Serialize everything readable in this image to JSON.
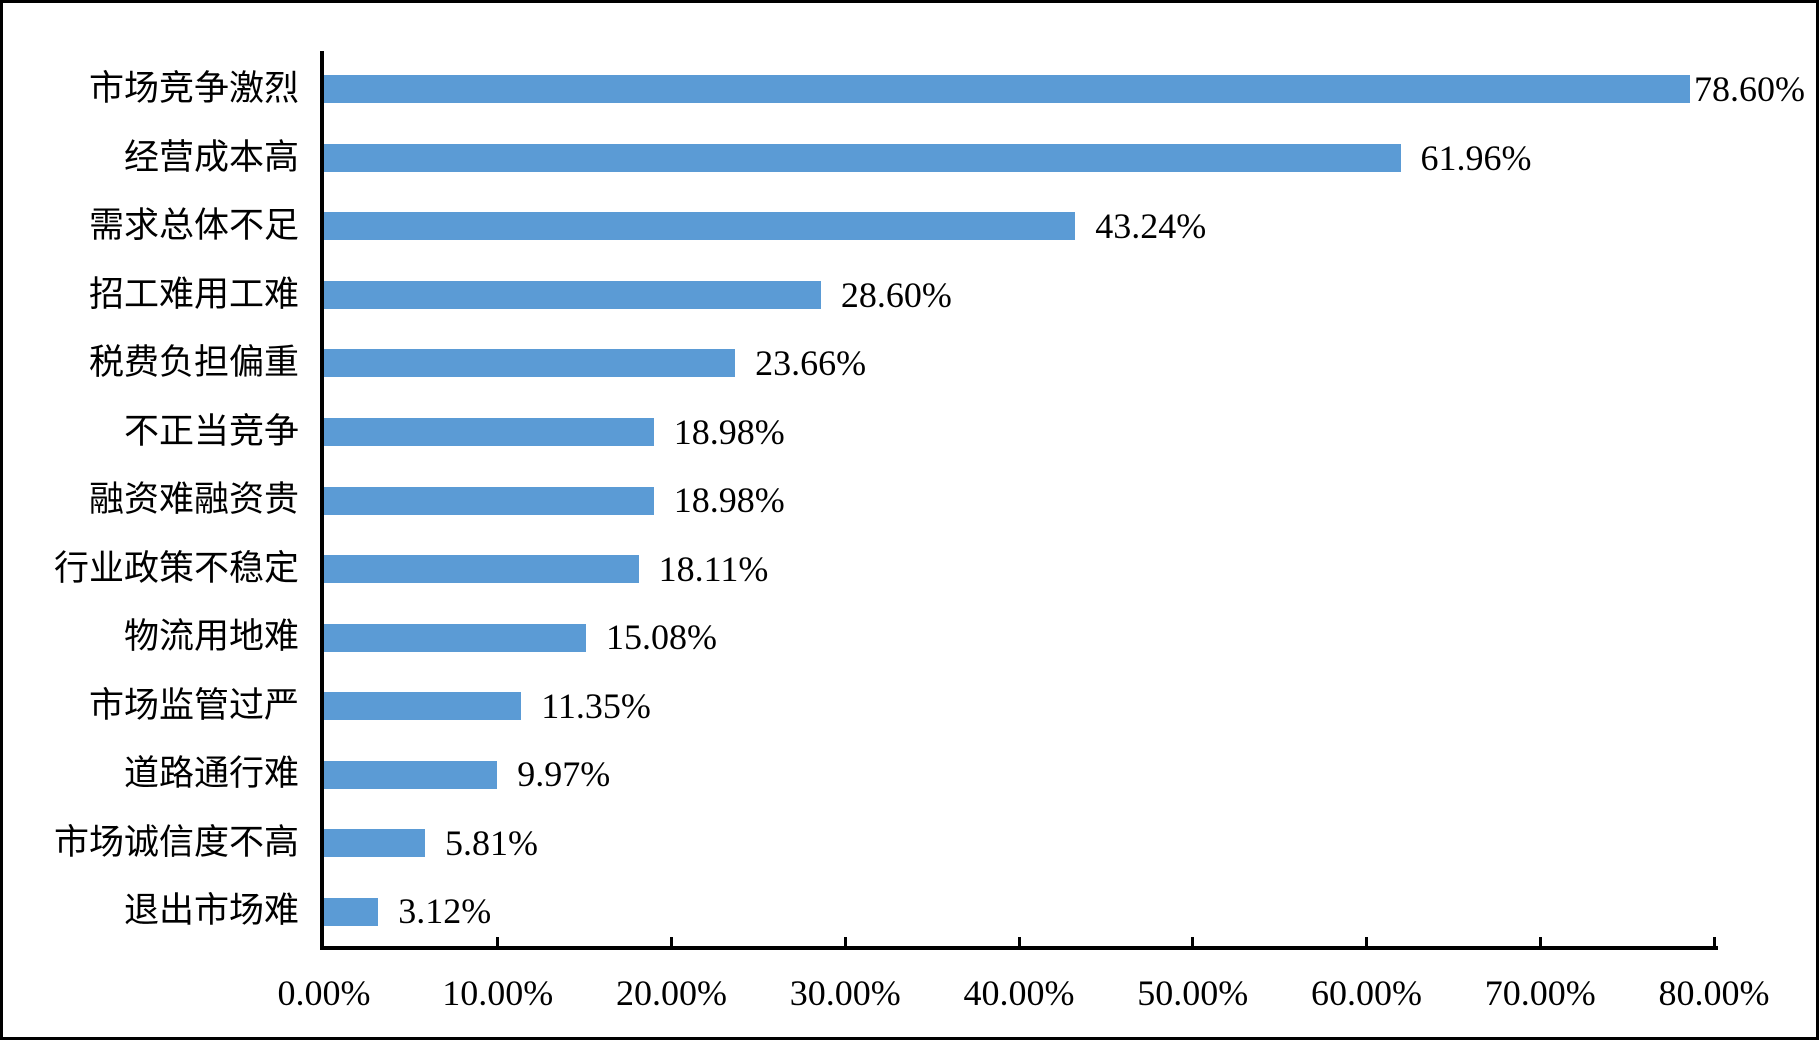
{
  "figure": {
    "background_color": "#ffffff",
    "border_color": "#000000"
  },
  "chart_data": {
    "type": "bar",
    "orientation": "horizontal",
    "title": "",
    "categories": [
      "市场竞争激烈",
      "经营成本高",
      "需求总体不足",
      "招工难用工难",
      "税费负担偏重",
      "不正当竞争",
      "融资难融资贵",
      "行业政策不稳定",
      "物流用地难",
      "市场监管过严",
      "道路通行难",
      "市场诚信度不高",
      "退出市场难"
    ],
    "values": [
      78.6,
      61.96,
      43.24,
      28.6,
      23.66,
      18.98,
      18.98,
      18.11,
      15.08,
      11.35,
      9.97,
      5.81,
      3.12
    ],
    "data_labels": [
      "78.60%",
      "61.96%",
      "43.24%",
      "28.60%",
      "23.66%",
      "18.98%",
      "18.98%",
      "18.11%",
      "15.08%",
      "11.35%",
      "9.97%",
      "5.81%",
      "3.12%"
    ],
    "x_axis": {
      "min": 0,
      "max": 80,
      "step": 10,
      "tick_labels": [
        "0.00%",
        "10.00%",
        "20.00%",
        "30.00%",
        "40.00%",
        "50.00%",
        "60.00%",
        "70.00%",
        "80.00%"
      ]
    },
    "bar_color": "#5B9BD5",
    "axis_color": "#000000",
    "text_color": "#000000",
    "grid": false,
    "legend": false,
    "data_label_position": "outside-end"
  }
}
